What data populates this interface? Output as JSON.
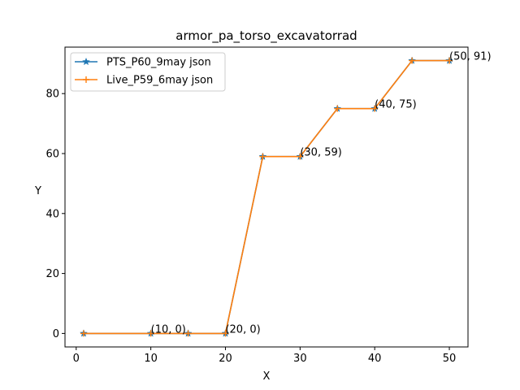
{
  "chart_data": {
    "type": "line",
    "title": "armor_pa_torso_excavatorrad",
    "xlabel": "X",
    "ylabel": "Y",
    "xlim": [
      -1.5,
      52.5
    ],
    "ylim": [
      -4.5,
      95.5
    ],
    "xticks": [
      0,
      10,
      20,
      30,
      40,
      50
    ],
    "yticks": [
      0,
      20,
      40,
      60,
      80
    ],
    "grid": false,
    "legend_position": "top-left",
    "x": [
      1,
      10,
      15,
      20,
      25,
      30,
      35,
      40,
      45,
      50
    ],
    "series": [
      {
        "name": "PTS_P60_9may json",
        "color": "#1f77b4",
        "marker": "star",
        "values": [
          0,
          0,
          0,
          0,
          59,
          59,
          75,
          75,
          91,
          91
        ]
      },
      {
        "name": "Live_P59_6may json",
        "color": "#ff7f0e",
        "marker": "plus",
        "values": [
          0,
          0,
          0,
          0,
          59,
          59,
          75,
          75,
          91,
          91
        ]
      }
    ],
    "annotations": [
      {
        "x": 10,
        "y": 0,
        "text": "(10, 0)"
      },
      {
        "x": 20,
        "y": 0,
        "text": "(20, 0)"
      },
      {
        "x": 30,
        "y": 59,
        "text": "(30, 59)"
      },
      {
        "x": 40,
        "y": 75,
        "text": "(40, 75)"
      },
      {
        "x": 50,
        "y": 91,
        "text": "(50, 91)"
      }
    ]
  }
}
